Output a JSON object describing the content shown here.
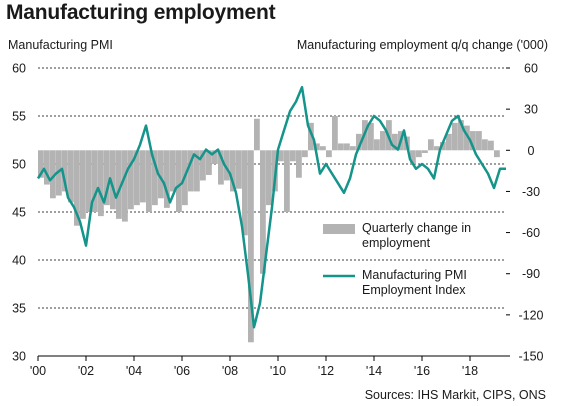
{
  "title": "Manufacturing employment",
  "source": "Sources: IHS Markit, CIPS, ONS",
  "colors": {
    "bars": "#b3b3b3",
    "line": "#14948a",
    "grid": "#000000"
  },
  "chart_data": {
    "type": "bar+line",
    "y_left_label": "Manufacturing PMI",
    "y_right_label": "Manufacturing employment  q/q change ('000)",
    "y_left_range": [
      30,
      60
    ],
    "y_left_ticks": [
      "30",
      "35",
      "40",
      "45",
      "50",
      "55",
      "60"
    ],
    "y_right_range": [
      -150,
      60
    ],
    "y_right_ticks": [
      "-150",
      "-120",
      "-90",
      "-60",
      "-30",
      "0",
      "30",
      "60"
    ],
    "x_range": [
      2000,
      2019.5
    ],
    "x_ticks": [
      "'00",
      "'02",
      "'04",
      "'06",
      "'08",
      "'10",
      "'12",
      "'14",
      "'16",
      "'18"
    ],
    "grid": "dashed horizontal",
    "legend_position": "lower-right",
    "series": [
      {
        "name": "Quarterly change in employment",
        "type": "bar",
        "axis": "right",
        "data": [
          [
            2000.0,
            -20
          ],
          [
            2000.25,
            -25
          ],
          [
            2000.5,
            -35
          ],
          [
            2000.75,
            -33
          ],
          [
            2001.0,
            -30
          ],
          [
            2001.25,
            -38
          ],
          [
            2001.5,
            -55
          ],
          [
            2001.75,
            -50
          ],
          [
            2002.0,
            -45
          ],
          [
            2002.25,
            -45
          ],
          [
            2002.5,
            -48
          ],
          [
            2002.75,
            -40
          ],
          [
            2003.0,
            -43
          ],
          [
            2003.25,
            -50
          ],
          [
            2003.5,
            -52
          ],
          [
            2003.75,
            -43
          ],
          [
            2004.0,
            -40
          ],
          [
            2004.25,
            -38
          ],
          [
            2004.5,
            -45
          ],
          [
            2004.75,
            -40
          ],
          [
            2005.0,
            -35
          ],
          [
            2005.25,
            -42
          ],
          [
            2005.5,
            -30
          ],
          [
            2005.75,
            -45
          ],
          [
            2006.0,
            -40
          ],
          [
            2006.25,
            -30
          ],
          [
            2006.5,
            -30
          ],
          [
            2006.75,
            -22
          ],
          [
            2007.0,
            -18
          ],
          [
            2007.25,
            -10
          ],
          [
            2007.5,
            -25
          ],
          [
            2007.75,
            -22
          ],
          [
            2008.0,
            -30
          ],
          [
            2008.25,
            -28
          ],
          [
            2008.5,
            -62
          ],
          [
            2008.75,
            -140
          ],
          [
            2009.0,
            23
          ],
          [
            2009.25,
            -90
          ],
          [
            2009.5,
            -40
          ],
          [
            2009.75,
            -30
          ],
          [
            2010.0,
            -8
          ],
          [
            2010.25,
            -45
          ],
          [
            2010.5,
            -8
          ],
          [
            2010.75,
            -20
          ],
          [
            2011.0,
            -5
          ],
          [
            2011.25,
            20
          ],
          [
            2011.5,
            5
          ],
          [
            2011.75,
            3
          ],
          [
            2012.0,
            -5
          ],
          [
            2012.25,
            25
          ],
          [
            2012.5,
            5
          ],
          [
            2012.75,
            5
          ],
          [
            2013.0,
            3
          ],
          [
            2013.25,
            12
          ],
          [
            2013.5,
            22
          ],
          [
            2013.75,
            20
          ],
          [
            2014.0,
            8
          ],
          [
            2014.25,
            14
          ],
          [
            2014.5,
            22
          ],
          [
            2014.75,
            12
          ],
          [
            2015.0,
            14
          ],
          [
            2015.25,
            10
          ],
          [
            2015.5,
            -10
          ],
          [
            2015.75,
            -5
          ],
          [
            2016.0,
            -2
          ],
          [
            2016.25,
            8
          ],
          [
            2016.5,
            3
          ],
          [
            2016.75,
            6
          ],
          [
            2017.0,
            12
          ],
          [
            2017.25,
            20
          ],
          [
            2017.5,
            22
          ],
          [
            2017.75,
            18
          ],
          [
            2018.0,
            14
          ],
          [
            2018.25,
            14
          ],
          [
            2018.5,
            8
          ],
          [
            2018.75,
            7
          ],
          [
            2019.0,
            -5
          ]
        ]
      },
      {
        "name": "Manufacturing PMI Employment Index",
        "type": "line",
        "axis": "left",
        "data": [
          [
            2000.0,
            48.5
          ],
          [
            2000.25,
            49.5
          ],
          [
            2000.5,
            48.3
          ],
          [
            2000.75,
            49.0
          ],
          [
            2001.0,
            49.5
          ],
          [
            2001.25,
            46.5
          ],
          [
            2001.5,
            45.5
          ],
          [
            2001.75,
            44.0
          ],
          [
            2002.0,
            41.5
          ],
          [
            2002.25,
            46.0
          ],
          [
            2002.5,
            47.5
          ],
          [
            2002.75,
            46.0
          ],
          [
            2003.0,
            48.5
          ],
          [
            2003.25,
            46.5
          ],
          [
            2003.5,
            48.0
          ],
          [
            2003.75,
            49.5
          ],
          [
            2004.0,
            50.5
          ],
          [
            2004.25,
            52.0
          ],
          [
            2004.5,
            54.0
          ],
          [
            2004.75,
            51.0
          ],
          [
            2005.0,
            49.0
          ],
          [
            2005.25,
            48.0
          ],
          [
            2005.5,
            46.0
          ],
          [
            2005.75,
            47.5
          ],
          [
            2006.0,
            48.0
          ],
          [
            2006.25,
            49.5
          ],
          [
            2006.5,
            51.0
          ],
          [
            2006.75,
            50.5
          ],
          [
            2007.0,
            51.5
          ],
          [
            2007.25,
            51.0
          ],
          [
            2007.5,
            51.5
          ],
          [
            2007.75,
            50.0
          ],
          [
            2008.0,
            49.0
          ],
          [
            2008.25,
            47.0
          ],
          [
            2008.5,
            43.5
          ],
          [
            2008.75,
            38.5
          ],
          [
            2009.0,
            33.0
          ],
          [
            2009.25,
            35.5
          ],
          [
            2009.5,
            40.5
          ],
          [
            2009.75,
            45.5
          ],
          [
            2010.0,
            51.5
          ],
          [
            2010.25,
            53.5
          ],
          [
            2010.5,
            55.5
          ],
          [
            2010.75,
            56.5
          ],
          [
            2011.0,
            58.0
          ],
          [
            2011.25,
            54.0
          ],
          [
            2011.5,
            52.5
          ],
          [
            2011.75,
            49.0
          ],
          [
            2012.0,
            50.0
          ],
          [
            2012.25,
            49.0
          ],
          [
            2012.5,
            48.0
          ],
          [
            2012.75,
            47.0
          ],
          [
            2013.0,
            48.5
          ],
          [
            2013.25,
            51.0
          ],
          [
            2013.5,
            52.5
          ],
          [
            2013.75,
            54.0
          ],
          [
            2014.0,
            55.0
          ],
          [
            2014.25,
            54.5
          ],
          [
            2014.5,
            53.5
          ],
          [
            2014.75,
            52.0
          ],
          [
            2015.0,
            51.5
          ],
          [
            2015.25,
            53.5
          ],
          [
            2015.5,
            50.5
          ],
          [
            2015.75,
            49.5
          ],
          [
            2016.0,
            50.0
          ],
          [
            2016.25,
            49.5
          ],
          [
            2016.5,
            48.5
          ],
          [
            2016.75,
            51.5
          ],
          [
            2017.0,
            53.0
          ],
          [
            2017.25,
            54.5
          ],
          [
            2017.5,
            55.0
          ],
          [
            2017.75,
            53.5
          ],
          [
            2018.0,
            52.5
          ],
          [
            2018.25,
            51.0
          ],
          [
            2018.5,
            50.0
          ],
          [
            2018.75,
            49.0
          ],
          [
            2019.0,
            47.5
          ],
          [
            2019.25,
            49.5
          ],
          [
            2019.5,
            49.5
          ]
        ]
      }
    ]
  }
}
